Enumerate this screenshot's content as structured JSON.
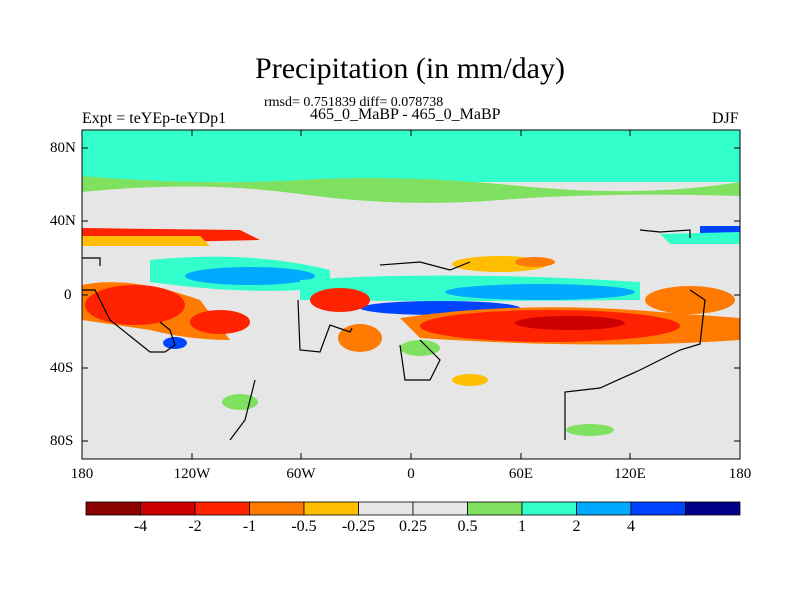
{
  "title": "Precipitation (in mm/day)",
  "stats": "rmsd= 0.751839 diff= 0.078738",
  "subtitle": "465_0_MaBP - 465_0_MaBP",
  "experiment": "Expt = teYEp-teYDp1",
  "season": "DJF",
  "map": {
    "lon_range": [
      -180,
      180
    ],
    "lat_range": [
      -90,
      90
    ],
    "background_color": "#e6e6e6",
    "x_tick_labels": [
      "180",
      "120W",
      "60W",
      "0",
      "60E",
      "120E",
      "180"
    ],
    "y_tick_labels": [
      "80N",
      "40N",
      "0",
      "40S",
      "80S"
    ]
  },
  "colorbar": {
    "colors": [
      "#8b0000",
      "#cc0000",
      "#ff2200",
      "#ff7a00",
      "#ffbf00",
      "#e6e6e6",
      "#e6e6e6",
      "#80e060",
      "#33ffcc",
      "#00aaff",
      "#0044ff",
      "#00008b"
    ],
    "labels": [
      "-4",
      "-2",
      "-1",
      "-0.5",
      "-0.25",
      "0.25",
      "0.5",
      "1",
      "2",
      "4"
    ]
  }
}
